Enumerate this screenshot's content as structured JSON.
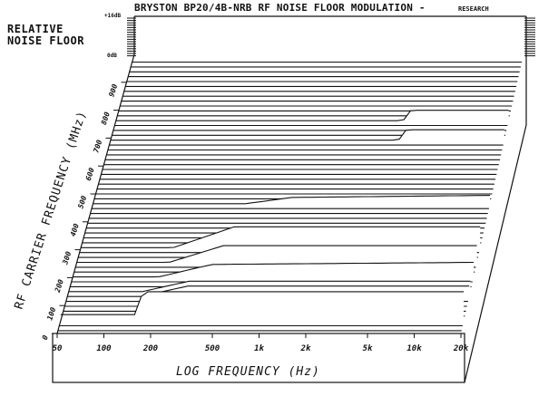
{
  "header": {
    "title": "BRYSTON BP20/4B-NRB RF NOISE FLOOR MODULATION -",
    "brand_line1": "",
    "brand_line2": "RESEARCH"
  },
  "labels": {
    "relative_line1": "RELATIVE",
    "relative_line2": "NOISE FLOOR",
    "top_db": "+16dB",
    "zero_db": "0dB"
  },
  "chart_data": {
    "type": "waterfall",
    "title": "BRYSTON BP20/4B-NRB RF NOISE FLOOR MODULATION",
    "xlabel": "LOG FREQUENCY (Hz)",
    "ylabel": "RF CARRIER FREQUENCY (MHz)",
    "zlabel": "RELATIVE NOISE FLOOR",
    "x_scale": "log",
    "xlim": [
      50,
      20000
    ],
    "x_ticks": [
      {
        "v": 50,
        "label": "50"
      },
      {
        "v": 100,
        "label": "100"
      },
      {
        "v": 200,
        "label": "200"
      },
      {
        "v": 500,
        "label": "500"
      },
      {
        "v": 1000,
        "label": "1k"
      },
      {
        "v": 2000,
        "label": "2k"
      },
      {
        "v": 5000,
        "label": "5k"
      },
      {
        "v": 10000,
        "label": "10k"
      },
      {
        "v": 20000,
        "label": "20k"
      }
    ],
    "ylim": [
      0,
      1000
    ],
    "y_ticks": [
      0,
      100,
      200,
      300,
      400,
      500,
      600,
      700,
      800,
      900
    ],
    "zlim": [
      0,
      16
    ],
    "z_ticks": [
      "0dB",
      "+16dB"
    ],
    "trace_count": 56,
    "trace_spacing_mhz": 17.5,
    "features": [
      {
        "carrier_mhz": 50,
        "shape": "step",
        "points": [
          [
            50,
            3
          ],
          [
            150,
            3
          ],
          [
            170,
            14
          ],
          [
            20000,
            14
          ]
        ]
      },
      {
        "carrier_mhz": 140,
        "shape": "ramp",
        "points": [
          [
            50,
            0
          ],
          [
            150,
            0
          ],
          [
            300,
            5
          ],
          [
            20000,
            5
          ]
        ]
      },
      {
        "carrier_mhz": 200,
        "shape": "ramp",
        "points": [
          [
            50,
            0
          ],
          [
            180,
            0
          ],
          [
            400,
            6
          ],
          [
            20000,
            7
          ]
        ]
      },
      {
        "carrier_mhz": 250,
        "shape": "ramp",
        "points": [
          [
            50,
            0
          ],
          [
            200,
            0
          ],
          [
            450,
            8
          ],
          [
            20000,
            8
          ]
        ]
      },
      {
        "carrier_mhz": 310,
        "shape": "ramp",
        "points": [
          [
            50,
            0
          ],
          [
            200,
            0
          ],
          [
            500,
            10
          ],
          [
            20000,
            10
          ]
        ]
      },
      {
        "carrier_mhz": 470,
        "shape": "ramp",
        "points": [
          [
            50,
            0
          ],
          [
            500,
            0
          ],
          [
            1000,
            3
          ],
          [
            20000,
            4
          ]
        ]
      },
      {
        "carrier_mhz": 690,
        "shape": "plateau",
        "points": [
          [
            50,
            0
          ],
          [
            4000,
            0
          ],
          [
            4500,
            5
          ],
          [
            20000,
            5
          ]
        ]
      },
      {
        "carrier_mhz": 760,
        "shape": "plateau",
        "points": [
          [
            50,
            0
          ],
          [
            4000,
            0
          ],
          [
            4500,
            5
          ],
          [
            20000,
            5
          ]
        ]
      }
    ]
  }
}
